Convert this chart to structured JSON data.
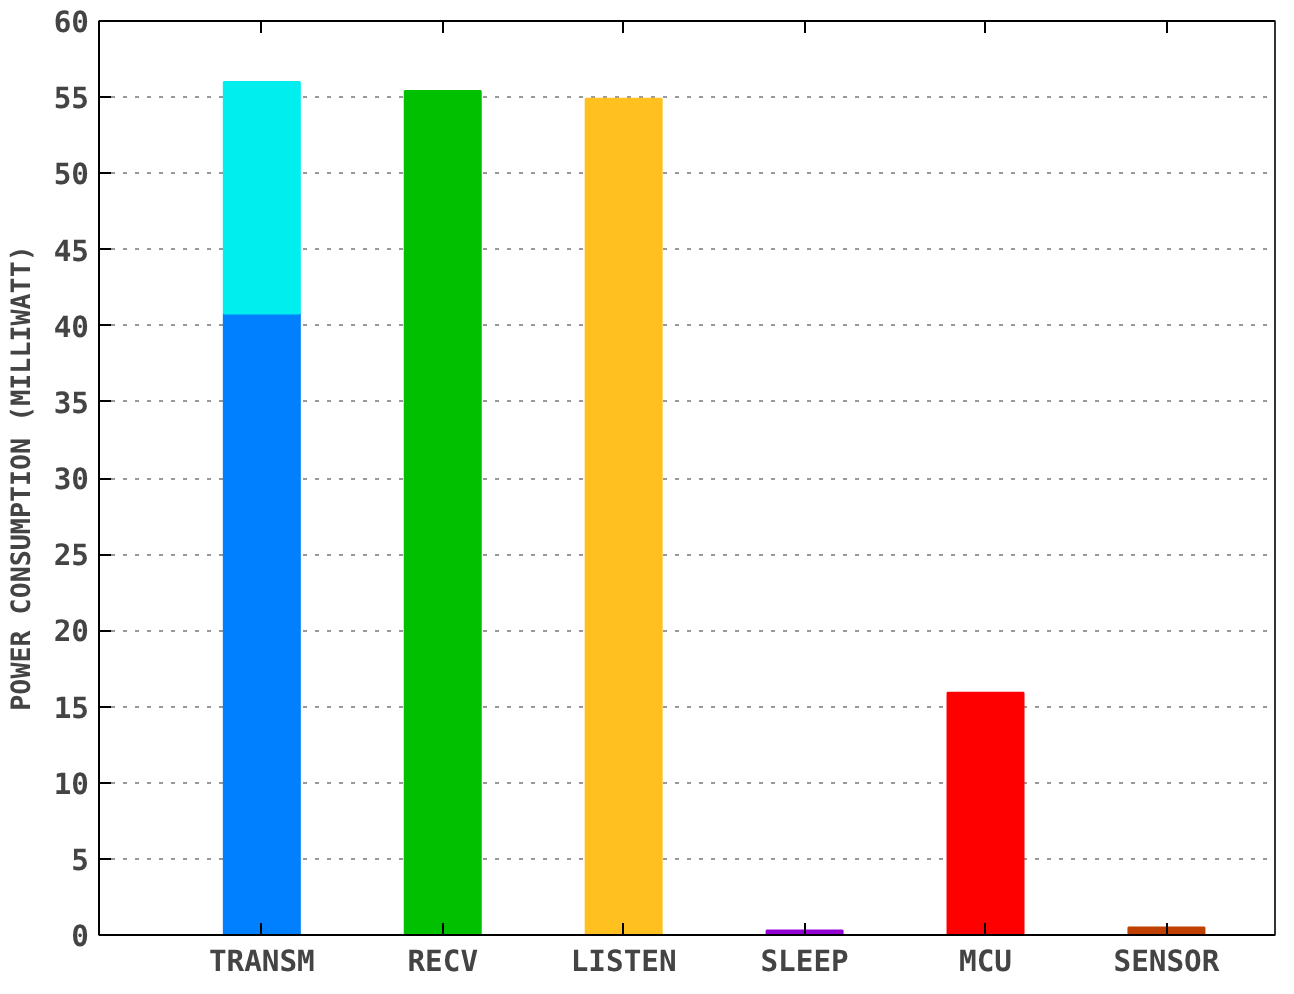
{
  "chart_data": {
    "type": "bar",
    "ylabel": "POWER CONSUMPTION (MILLIWATT)",
    "categories": [
      "TRANSM",
      "RECV",
      "LISTEN",
      "SLEEP",
      "MCU",
      "SENSOR"
    ],
    "stacked": true,
    "series": [
      {
        "colors": [
          "#0080ff",
          "#00c000",
          "#ffc020",
          "#9400d3",
          "#ff0000",
          "#c04000"
        ],
        "values": [
          40.8,
          55.4,
          54.9,
          0.3,
          15.9,
          0.5
        ]
      },
      {
        "colors": [
          "#00eeee",
          null,
          null,
          null,
          null,
          null
        ],
        "values": [
          15.2,
          null,
          null,
          null,
          null,
          null
        ]
      }
    ],
    "ylim": [
      0,
      60
    ],
    "yticks": [
      0,
      5,
      10,
      15,
      20,
      25,
      30,
      35,
      40,
      45,
      50,
      55,
      60
    ],
    "grid": "y"
  }
}
